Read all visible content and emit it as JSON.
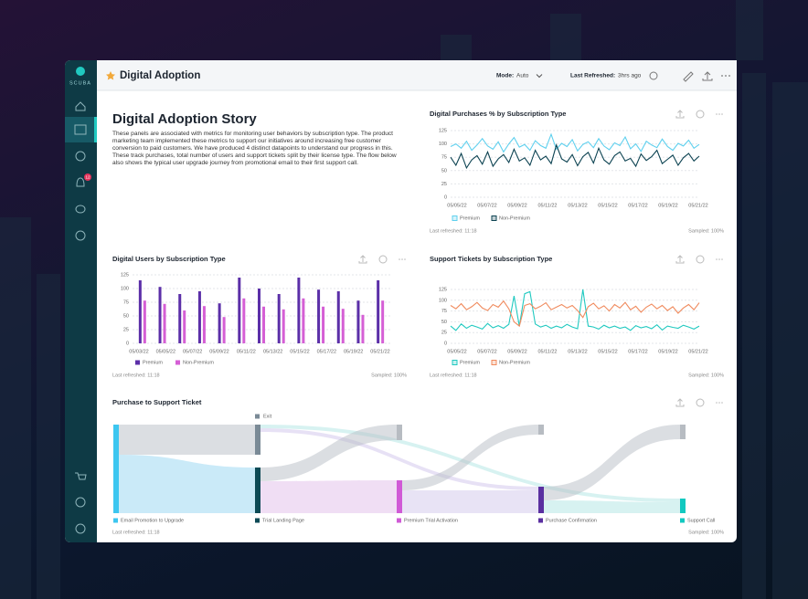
{
  "header": {
    "title": "Digital Adoption",
    "mode_label": "Mode:",
    "mode_value": "Auto",
    "refreshed_label": "Last Refreshed:",
    "refreshed_value": "3hrs ago"
  },
  "sidebar": {
    "logo": "SCUBA",
    "badge": "12"
  },
  "story": {
    "title": "Digital Adoption Story",
    "body": "These panels are associated with metrics for monitoring user behaviors by subscription type. The product marketing team implemented these metrics to support our initiatives around increasing free customer conversion to paid customers. We have produced 4 distinct datapoints to understand our progress in this. These track purchases, total number of users and support tickets split by their license type. The flow below also shows the typical user upgrade journey from promotional email to their first support call."
  },
  "chart_data": [
    {
      "type": "line",
      "title": "Digital Purchases % by Subscription Type",
      "xticks": [
        "05/05/22",
        "05/07/22",
        "05/09/22",
        "05/11/22",
        "05/13/22",
        "05/15/22",
        "05/17/22",
        "05/19/22",
        "05/21/22"
      ],
      "ylim": [
        0,
        125
      ],
      "yticks": [
        0,
        25,
        50,
        75,
        100,
        125
      ],
      "grid": true,
      "series": [
        {
          "name": "Premium",
          "color": "#5fd0ee",
          "values": [
            95,
            100,
            92,
            105,
            88,
            98,
            110,
            96,
            90,
            104,
            85,
            100,
            112,
            94,
            99,
            88,
            106,
            97,
            92,
            118,
            90,
            101,
            95,
            108,
            87,
            99,
            104,
            93,
            110,
            96,
            89,
            102,
            97,
            113,
            91,
            100,
            86,
            105,
            98,
            93,
            109,
            95,
            88,
            101,
            96,
            107,
            92,
            99
          ]
        },
        {
          "name": "Non-Premium",
          "color": "#0d4352",
          "values": [
            75,
            60,
            82,
            55,
            70,
            78,
            62,
            85,
            58,
            72,
            80,
            65,
            90,
            68,
            74,
            60,
            88,
            70,
            77,
            63,
            98,
            72,
            66,
            80,
            59,
            76,
            84,
            64,
            92,
            70,
            62,
            78,
            85,
            68,
            73,
            58,
            81,
            69,
            76,
            88,
            63,
            71,
            79,
            60,
            74,
            82,
            68,
            77
          ]
        }
      ],
      "footer_left": "Last refreshed: 11:18",
      "footer_right": "Sampled: 100%"
    },
    {
      "type": "bar",
      "title": "Digital Users by Subscription Type",
      "categories": [
        null,
        null,
        null,
        null,
        null,
        null,
        null,
        null,
        null,
        null,
        null,
        null,
        null
      ],
      "xticks": [
        "05/03/22",
        "05/05/22",
        "05/07/22",
        "05/09/22",
        "05/11/22",
        "05/13/22",
        "05/15/22",
        "05/17/22",
        "05/19/22",
        "05/21/22"
      ],
      "ylim": [
        0,
        125
      ],
      "yticks": [
        0,
        25,
        50,
        75,
        100,
        125
      ],
      "grid": true,
      "series": [
        {
          "name": "Premium",
          "color": "#5b2fa8",
          "values": [
            115,
            103,
            90,
            95,
            73,
            120,
            100,
            90,
            120,
            98,
            95,
            78,
            115
          ]
        },
        {
          "name": "Non-Premium",
          "color": "#d55fd5",
          "values": [
            78,
            72,
            60,
            68,
            48,
            82,
            67,
            62,
            82,
            67,
            63,
            52,
            78
          ]
        }
      ],
      "footer_left": "Last refreshed: 11:18",
      "footer_right": "Sampled: 100%"
    },
    {
      "type": "line",
      "title": "Support Tickets by Subscription Type",
      "xticks": [
        "05/05/22",
        "05/07/22",
        "05/09/22",
        "05/11/22",
        "05/13/22",
        "05/15/22",
        "05/17/22",
        "05/19/22",
        "05/21/22"
      ],
      "ylim": [
        0,
        125
      ],
      "yticks": [
        0,
        25,
        50,
        75,
        100,
        125
      ],
      "grid": true,
      "series": [
        {
          "name": "Premium",
          "color": "#20c9c0",
          "values": [
            40,
            30,
            45,
            35,
            42,
            38,
            33,
            46,
            36,
            41,
            35,
            44,
            110,
            40,
            115,
            120,
            45,
            38,
            42,
            35,
            40,
            36,
            44,
            38,
            34,
            125,
            40,
            38,
            33,
            42,
            36,
            40,
            35,
            38,
            30,
            41,
            36,
            39,
            34,
            43,
            31,
            40,
            37,
            35,
            42,
            38,
            33,
            40
          ]
        },
        {
          "name": "Non-Premium",
          "color": "#f08a5d",
          "values": [
            88,
            80,
            92,
            78,
            85,
            95,
            82,
            76,
            90,
            84,
            98,
            80,
            50,
            40,
            88,
            92,
            80,
            86,
            94,
            78,
            84,
            90,
            82,
            88,
            76,
            60,
            85,
            93,
            80,
            87,
            75,
            90,
            82,
            95,
            78,
            86,
            72,
            84,
            91,
            80,
            88,
            76,
            85,
            70,
            82,
            90,
            78,
            94
          ]
        }
      ],
      "footer_left": "Last refreshed: 11:18",
      "footer_right": "Sampled: 100%"
    }
  ],
  "sankey": {
    "title": "Purchase to Support Ticket",
    "nodes": [
      {
        "label": "Email Promotion to Upgrade",
        "color": "#3cc6f0"
      },
      {
        "label": "Trial Landing Page",
        "color": "#0d4a55"
      },
      {
        "label": "Premium Trial Activation",
        "color": "#d05ad6"
      },
      {
        "label": "Purchase Confirmation",
        "color": "#5a2fa0"
      },
      {
        "label": "Support Call",
        "color": "#12c9c0"
      }
    ],
    "exit": {
      "label": "Exit",
      "color": "#7a8a96"
    },
    "footer_left": "Last refreshed: 11:18",
    "footer_right": "Sampled: 100%"
  }
}
